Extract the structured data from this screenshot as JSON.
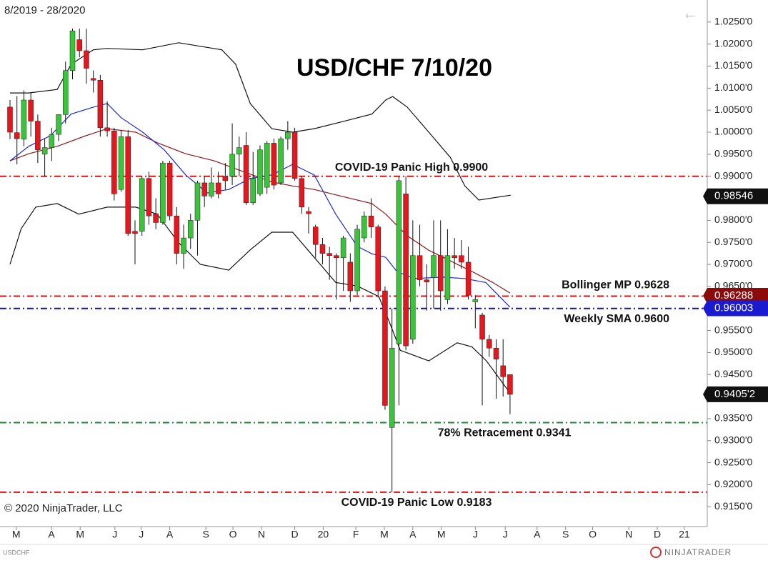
{
  "chart_data": {
    "type": "candlestick",
    "title": "USD/CHF 7/10/20",
    "date_range": "8/2019 - 28/2020",
    "symbol": "USDCHF",
    "copyright": "© 2020 NinjaTrader, LLC",
    "brand": "NINJATRADER",
    "up_color": "#39c43a",
    "down_color": "#e8161c",
    "xlim": [
      -1.44,
      100.4
    ],
    "ylim": [
      0.9105,
      1.03
    ],
    "xticks": [
      {
        "value": 0.9,
        "label": "M"
      },
      {
        "value": 5.97,
        "label": "A"
      },
      {
        "value": 10.1,
        "label": "M"
      },
      {
        "value": 15.1,
        "label": "J"
      },
      {
        "value": 18.9,
        "label": "J"
      },
      {
        "value": 23.0,
        "label": "A"
      },
      {
        "value": 28.2,
        "label": "S"
      },
      {
        "value": 32.1,
        "label": "O"
      },
      {
        "value": 36.2,
        "label": "N"
      },
      {
        "value": 41.0,
        "label": "D"
      },
      {
        "value": 45.1,
        "label": "20"
      },
      {
        "value": 49.8,
        "label": "F"
      },
      {
        "value": 53.9,
        "label": "M"
      },
      {
        "value": 58.0,
        "label": "A"
      },
      {
        "value": 62.1,
        "label": "M"
      },
      {
        "value": 67.0,
        "label": "J"
      },
      {
        "value": 71.3,
        "label": "J"
      },
      {
        "value": 75.9,
        "label": "A"
      },
      {
        "value": 80.0,
        "label": "S"
      },
      {
        "value": 83.9,
        "label": "O"
      },
      {
        "value": 89.1,
        "label": "N"
      },
      {
        "value": 93.2,
        "label": "D"
      },
      {
        "value": 97.1,
        "label": "21"
      }
    ],
    "yticks": [
      {
        "value": 1.025,
        "label": "1.0250'0"
      },
      {
        "value": 1.02,
        "label": "1.0200'0"
      },
      {
        "value": 1.015,
        "label": "1.0150'0"
      },
      {
        "value": 1.01,
        "label": "1.0100'0"
      },
      {
        "value": 1.005,
        "label": "1.0050'0"
      },
      {
        "value": 1.0,
        "label": "1.0000'0"
      },
      {
        "value": 0.995,
        "label": "0.9950'0"
      },
      {
        "value": 0.99,
        "label": "0.9900'0"
      },
      {
        "value": 0.985,
        "label": "0.9850'0"
      },
      {
        "value": 0.98,
        "label": "0.9800'0"
      },
      {
        "value": 0.975,
        "label": "0.9750'0"
      },
      {
        "value": 0.97,
        "label": "0.9700'0"
      },
      {
        "value": 0.965,
        "label": "0.9650'0"
      },
      {
        "value": 0.96,
        "label": "0.9600'0"
      },
      {
        "value": 0.955,
        "label": "0.9550'0"
      },
      {
        "value": 0.95,
        "label": "0.9500'0"
      },
      {
        "value": 0.945,
        "label": "0.9450'0"
      },
      {
        "value": 0.94,
        "label": "0.9400'0"
      },
      {
        "value": 0.935,
        "label": "0.9350'0"
      },
      {
        "value": 0.93,
        "label": "0.9300'0"
      },
      {
        "value": 0.925,
        "label": "0.9250'0"
      },
      {
        "value": 0.92,
        "label": "0.9200'0"
      },
      {
        "value": 0.915,
        "label": "0.9150'0"
      }
    ],
    "open": [
      1.0057,
      0.9999,
      0.9984,
      1.0073,
      1.0025,
      0.995,
      0.9965,
      0.9995,
      1.004,
      1.014,
      1.021,
      1.0185,
      1.0122,
      1.0118,
      1.001,
      1.0003,
      0.987,
      0.999,
      0.9775,
      0.9775,
      0.9895,
      0.9815,
      0.9795,
      0.993,
      0.981,
      0.9725,
      0.976,
      0.98,
      0.9885,
      0.9855,
      0.9885,
      0.99,
      0.99,
      0.995,
      0.997,
      0.984,
      0.986,
      0.9875,
      0.9975,
      0.9885,
      0.9985,
      1.0,
      0.9895,
      0.982,
      0.9785,
      0.9745,
      0.9725,
      0.972,
      0.9715,
      0.9705,
      0.964,
      0.976,
      0.981,
      0.9785,
      0.964,
      0.933,
      0.952,
      0.986,
      0.953,
      0.972,
      0.9665,
      0.967,
      0.972,
      0.962,
      0.972,
      0.972,
      0.9705,
      0.9615,
      0.9585,
      0.953,
      0.951,
      0.947,
      0.945
    ],
    "high": [
      1.0073,
      1.0082,
      1.0095,
      1.009,
      1.004,
      0.9985,
      1.001,
      1.004,
      1.016,
      1.0235,
      1.0235,
      1.0235,
      1.014,
      1.013,
      1.007,
      1.001,
      1.0005,
      1.0005,
      0.98,
      0.99,
      0.991,
      0.985,
      0.9935,
      0.9935,
      0.983,
      0.979,
      0.9815,
      0.989,
      0.99,
      0.992,
      0.991,
      0.993,
      1.002,
      0.999,
      1.0,
      0.9955,
      0.997,
      0.998,
      0.9985,
      0.999,
      1.0025,
      1.001,
      0.99,
      0.983,
      0.979,
      0.976,
      0.974,
      0.9725,
      0.9765,
      0.9725,
      0.979,
      0.982,
      0.985,
      0.979,
      0.965,
      0.96,
      0.99,
      0.99,
      0.98,
      0.979,
      0.97,
      0.98,
      0.98,
      0.978,
      0.976,
      0.9755,
      0.974,
      0.963,
      0.959,
      0.954,
      0.953,
      0.953,
      0.945
    ],
    "low": [
      0.9984,
      0.9927,
      0.9968,
      0.999,
      0.993,
      0.99,
      0.9935,
      0.998,
      1.002,
      1.012,
      1.017,
      1.011,
      1.009,
      0.999,
      0.999,
      0.9845,
      0.9865,
      0.9765,
      0.97,
      0.9765,
      0.979,
      0.978,
      0.979,
      0.98,
      0.97,
      0.969,
      0.9735,
      0.972,
      0.983,
      0.985,
      0.985,
      0.987,
      0.988,
      0.99,
      0.9835,
      0.9835,
      0.9855,
      0.986,
      0.987,
      0.988,
      0.996,
      0.989,
      0.9815,
      0.977,
      0.9715,
      0.97,
      0.9665,
      0.962,
      0.964,
      0.9615,
      0.963,
      0.975,
      0.976,
      0.9625,
      0.937,
      0.9183,
      0.938,
      0.9505,
      0.952,
      0.965,
      0.9595,
      0.96,
      0.9595,
      0.961,
      0.969,
      0.969,
      0.962,
      0.9555,
      0.938,
      0.949,
      0.9395,
      0.94,
      0.936
    ],
    "close": [
      1.0,
      0.9985,
      1.0073,
      1.0025,
      0.996,
      0.9965,
      0.9995,
      1.004,
      1.014,
      1.023,
      1.0185,
      1.0145,
      1.0118,
      1.001,
      1.0003,
      0.986,
      0.999,
      0.977,
      0.977,
      0.9895,
      0.981,
      0.9795,
      0.993,
      0.981,
      0.9725,
      0.976,
      0.98,
      0.9885,
      0.9855,
      0.9885,
      0.986,
      0.989,
      0.995,
      0.9965,
      0.984,
      0.9895,
      0.996,
      0.9975,
      0.988,
      0.9985,
      1.0,
      0.9895,
      0.983,
      0.9815,
      0.9745,
      0.9725,
      0.972,
      0.9715,
      0.976,
      0.964,
      0.978,
      0.981,
      0.9785,
      0.964,
      0.938,
      0.951,
      0.989,
      0.9515,
      0.972,
      0.9665,
      0.966,
      0.972,
      0.964,
      0.972,
      0.9715,
      0.9705,
      0.963,
      0.962,
      0.953,
      0.951,
      0.9485,
      0.9445,
      0.9405
    ],
    "overlays": [
      {
        "color": "#111111",
        "x": [
          0,
          2.7,
          6.8,
          8.8,
          12.0,
          14.0,
          19.1,
          24.3,
          27.4,
          30.5,
          32.5,
          34.6,
          37.7,
          40.7,
          43.8,
          47.9,
          52.1,
          54.1,
          55.1,
          57.2,
          60.3,
          63.4,
          65.5,
          67.5,
          72.1
        ],
        "values": [
          1.0089,
          1.0089,
          1.0097,
          1.0154,
          1.0187,
          1.019,
          1.0187,
          1.0203,
          1.0195,
          1.0187,
          1.0154,
          1.0065,
          1.0008,
          1.0,
          1.0008,
          1.0024,
          1.0041,
          1.0073,
          1.0081,
          1.0057,
          1.0,
          0.9943,
          0.9878,
          0.9846,
          0.9857
        ]
      },
      {
        "color": "#111111",
        "x": [
          0,
          1.6,
          3.7,
          6.8,
          9.9,
          14.0,
          18.1,
          21.2,
          24.3,
          27.4,
          31.5,
          34.6,
          37.7,
          40.7,
          43.8,
          46.9,
          50.0,
          53.1,
          54.6,
          56.2,
          60.3,
          64.4,
          66.5,
          68.6,
          72.0
        ],
        "values": [
          0.97,
          0.9781,
          0.983,
          0.9838,
          0.9814,
          0.983,
          0.983,
          0.9814,
          0.9749,
          0.97,
          0.9687,
          0.9733,
          0.9773,
          0.9773,
          0.9716,
          0.9659,
          0.9651,
          0.9627,
          0.957,
          0.9505,
          0.9481,
          0.9522,
          0.9513,
          0.9481,
          0.9408
        ]
      },
      {
        "color": "#8b1a1a",
        "x": [
          0,
          2.7,
          6.8,
          10.9,
          14.0,
          18.1,
          21.2,
          25.3,
          29.4,
          33.5,
          37.7,
          40.7,
          43.8,
          47.9,
          52.1,
          54.1,
          57.2,
          60.3,
          63.4,
          66.5,
          69.5,
          72.0
        ],
        "values": [
          0.9935,
          0.9951,
          0.9968,
          0.9992,
          1.0008,
          1.0,
          0.9976,
          0.9951,
          0.9935,
          0.9911,
          0.9887,
          0.9878,
          0.987,
          0.9854,
          0.9838,
          0.9814,
          0.9765,
          0.9732,
          0.9708,
          0.9684,
          0.9659,
          0.9635
        ]
      },
      {
        "color": "#1a2ad6",
        "x": [
          0,
          2.7,
          5.8,
          8.8,
          12.0,
          14.0,
          16.0,
          19.1,
          22.2,
          25.3,
          28.4,
          31.5,
          34.6,
          37.7,
          40.7,
          43.8,
          46.9,
          50.0,
          52.1,
          54.1,
          55.7,
          58.2,
          62.3,
          65.4,
          68.5,
          72.0
        ],
        "values": [
          0.9935,
          0.9968,
          0.9992,
          1.0041,
          1.0057,
          1.0065,
          1.0033,
          1.0,
          0.996,
          0.9903,
          0.9862,
          0.987,
          0.9895,
          0.9903,
          0.9927,
          0.9903,
          0.9814,
          0.9741,
          0.9724,
          0.9716,
          0.9684,
          0.9668,
          0.9671,
          0.9668,
          0.9659,
          0.9603
        ]
      }
    ],
    "levels": [
      {
        "value": 0.99,
        "color": "#e01010",
        "label": "COVID-19 Panic High 0.9900"
      },
      {
        "value": 0.9628,
        "color": "#e01010",
        "label": "Bollinger MP 0.9628"
      },
      {
        "value": 0.96,
        "color": "#1010c0",
        "label": "Weekly SMA  0.9600"
      },
      {
        "value": 0.9341,
        "color": "#1a8a3a",
        "label": "78% Retracement 0.9341"
      },
      {
        "value": 0.9183,
        "color": "#e01010",
        "label": "COVID-19 Panic Low 0.9183"
      }
    ],
    "price_tags": [
      {
        "value": 0.98546,
        "label": "0.98546",
        "color": "#111111"
      },
      {
        "value": 0.96288,
        "label": "0.96288",
        "color": "#8b0a0a"
      },
      {
        "value": 0.96003,
        "label": "0.96003",
        "color": "#1a1ad0"
      },
      {
        "value": 0.94052,
        "label": "0.9405'2",
        "color": "#111111"
      }
    ]
  }
}
